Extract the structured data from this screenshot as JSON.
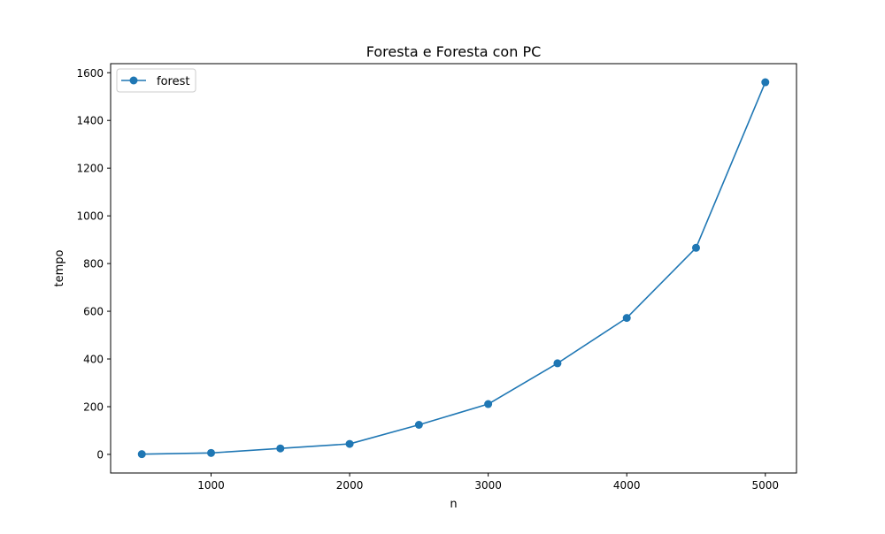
{
  "chart_data": {
    "type": "line",
    "title": "Foresta e Foresta con PC",
    "xlabel": "n",
    "ylabel": "tempo",
    "xlim": [
      275,
      5225
    ],
    "ylim": [
      -78,
      1638
    ],
    "xticks": [
      1000,
      2000,
      3000,
      4000,
      5000
    ],
    "yticks": [
      0,
      200,
      400,
      600,
      800,
      1000,
      1200,
      1400,
      1600
    ],
    "grid": false,
    "legend_position": "upper-left",
    "series": [
      {
        "name": "forest",
        "color": "#1f77b4",
        "marker": "circle",
        "x": [
          500,
          1000,
          1500,
          2000,
          2500,
          3000,
          3500,
          4000,
          4500,
          5000
        ],
        "y": [
          1,
          6,
          25,
          44,
          124,
          211,
          382,
          572,
          866,
          1560
        ]
      }
    ]
  }
}
